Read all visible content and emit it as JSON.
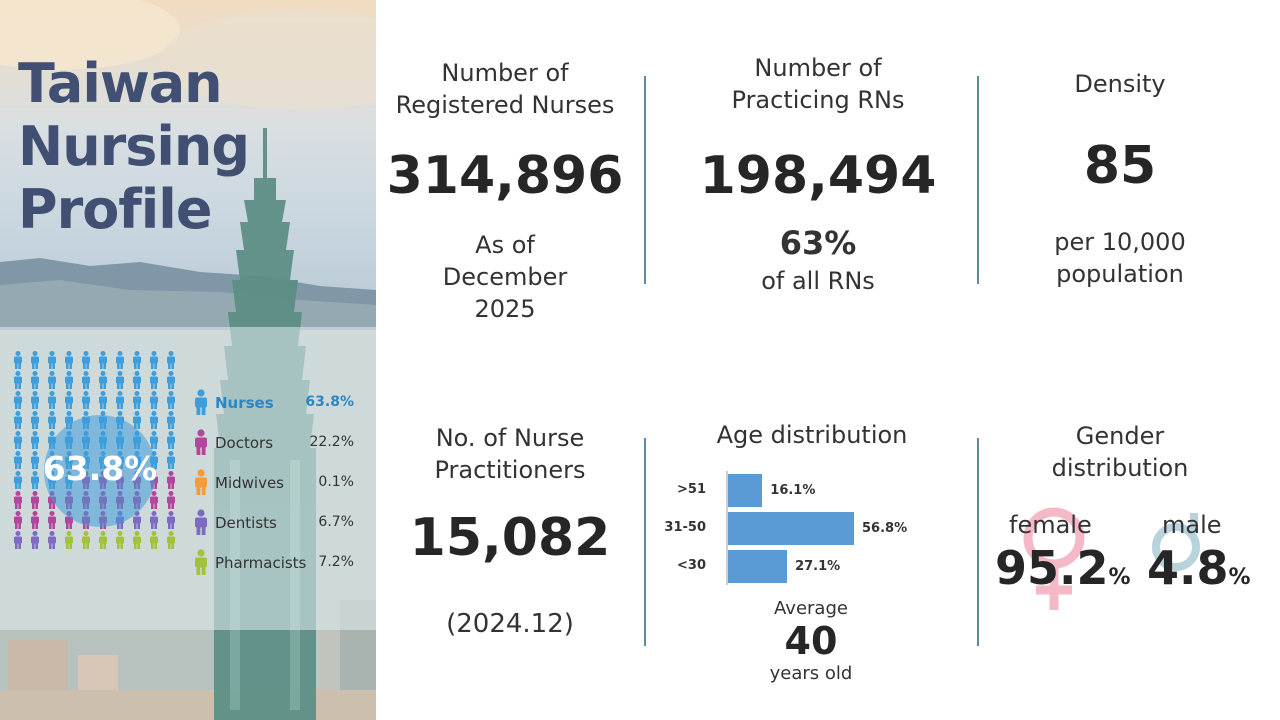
{
  "title_lines": [
    "Taiwan",
    "Nursing",
    "Profile"
  ],
  "pictogram": {
    "highlight_percent": "63.8%",
    "legend": [
      {
        "label": "Nurses",
        "value": "63.8%",
        "color": "#3e9ddb",
        "icon": "person-icon"
      },
      {
        "label": "Doctors",
        "value": "22.2%",
        "color": "#b2459c",
        "icon": "person-icon"
      },
      {
        "label": "Midwives",
        "value": "0.1%",
        "color": "#f39c3c",
        "icon": "person-icon"
      },
      {
        "label": "Dentists",
        "value": "6.7%",
        "color": "#7d6bc2",
        "icon": "person-icon"
      },
      {
        "label": "Pharmacists",
        "value": "7.2%",
        "color": "#a4c13b",
        "icon": "person-icon"
      }
    ]
  },
  "registered": {
    "title_lines": [
      "Number of",
      "Registered Nurses"
    ],
    "value": "314,896",
    "note_lines": [
      "As of",
      "December",
      "2025"
    ]
  },
  "practicing": {
    "title_lines": [
      "Number of",
      "Practicing RNs"
    ],
    "value": "198,494",
    "percent": "63%",
    "percent_note": "of all RNs"
  },
  "density": {
    "title": "Density",
    "value": "85",
    "note_lines": [
      "per 10,000",
      "population"
    ]
  },
  "practitioners": {
    "title_lines": [
      "No. of Nurse",
      "Practitioners"
    ],
    "value": "15,082",
    "note": "(2024.12)"
  },
  "age": {
    "title": "Age distribution",
    "average_label": "Average",
    "average_value": "40",
    "average_unit": "years old"
  },
  "chart_data": {
    "type": "bar",
    "orientation": "horizontal",
    "categories": [
      ">51",
      "31-50",
      "<30"
    ],
    "values": [
      16.1,
      56.8,
      27.1
    ],
    "value_labels": [
      "16.1%",
      "56.8%",
      "27.1%"
    ],
    "color": "#5b9bd5",
    "xlim": [
      0,
      56.8
    ]
  },
  "gender": {
    "title_lines": [
      "Gender",
      "distribution"
    ],
    "female_label": "female",
    "female_value": "95.2",
    "male_label": "male",
    "male_value": "4.8",
    "unit": "%",
    "female_color": "#f4b8c6",
    "male_color": "#b9d3dc"
  }
}
